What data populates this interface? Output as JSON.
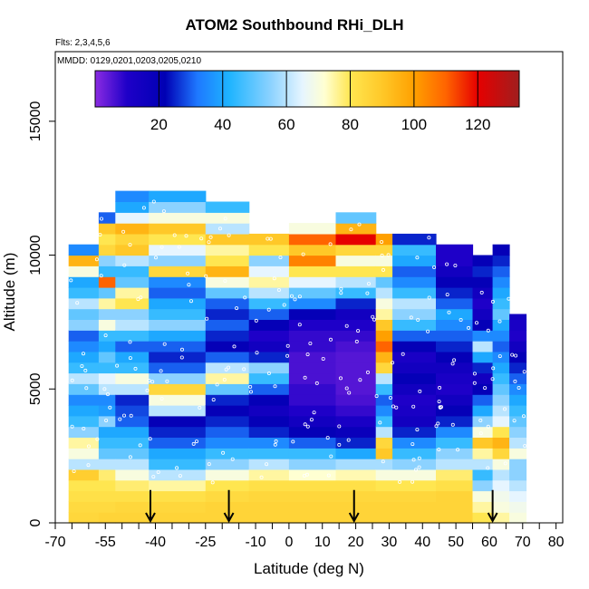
{
  "chart_data": {
    "type": "heatmap",
    "title": "ATOM2 Southbound RHi_DLH",
    "subtitle_flights": "Flts: 2,3,4,5,6",
    "subtitle_dates": "MMDD: 0129,0201,0203,0205,0210",
    "xlabel": "Latitude (deg N)",
    "ylabel": "Altitude (m)",
    "xlim": [
      -70,
      82
    ],
    "ylim": [
      0,
      17600
    ],
    "x_ticks": [
      -70,
      -55,
      -40,
      -25,
      -10,
      0,
      10,
      20,
      30,
      40,
      50,
      60,
      70,
      80
    ],
    "x_minor_ticks": [
      -65,
      -60,
      -50,
      -45,
      -35,
      -30,
      -20,
      -15,
      -5,
      5,
      15,
      25,
      35,
      45,
      55,
      65,
      75
    ],
    "y_ticks": [
      0,
      5000,
      10000,
      15000
    ],
    "colorbar": {
      "range": [
        0,
        133
      ],
      "ticks": [
        20,
        40,
        60,
        80,
        100,
        120
      ],
      "stops": [
        {
          "v": 0,
          "c": "#8B2BE2"
        },
        {
          "v": 10,
          "c": "#1E00C8"
        },
        {
          "v": 22,
          "c": "#0000B4"
        },
        {
          "v": 32,
          "c": "#1E78FF"
        },
        {
          "v": 42,
          "c": "#1EB4FF"
        },
        {
          "v": 55,
          "c": "#8CD2FF"
        },
        {
          "v": 65,
          "c": "#E6F5FF"
        },
        {
          "v": 72,
          "c": "#FFFFD2"
        },
        {
          "v": 80,
          "c": "#FFE650"
        },
        {
          "v": 90,
          "c": "#FFC828"
        },
        {
          "v": 100,
          "c": "#FFA000"
        },
        {
          "v": 110,
          "c": "#FF6400"
        },
        {
          "v": 120,
          "c": "#E60000"
        },
        {
          "v": 133,
          "c": "#A01E1E"
        }
      ]
    },
    "altitude_bin_m": 400,
    "profiles": [
      {
        "lat": -66,
        "lat_end": -57,
        "top": 10400,
        "rows": [
          85,
          84,
          82,
          80,
          88,
          60,
          70,
          75,
          55,
          45,
          40,
          35,
          50,
          60,
          45,
          40,
          35,
          30,
          55,
          50,
          60,
          45,
          40,
          70,
          95,
          35
        ]
      },
      {
        "lat": -57,
        "lat_end": -52,
        "top": 11800,
        "rows": [
          86,
          84,
          82,
          80,
          78,
          60,
          50,
          45,
          40,
          55,
          38,
          35,
          60,
          65,
          45,
          50,
          40,
          45,
          70,
          55,
          75,
          50,
          110,
          45,
          55,
          85,
          80,
          90,
          30
        ]
      },
      {
        "lat": -52,
        "lat_end": -42,
        "top": 12400,
        "rows": [
          86,
          85,
          82,
          78,
          70,
          60,
          50,
          45,
          40,
          30,
          28,
          25,
          60,
          70,
          45,
          40,
          30,
          45,
          60,
          55,
          80,
          75,
          50,
          45,
          60,
          90,
          85,
          95,
          65,
          40,
          35
        ]
      },
      {
        "lat": -42,
        "lat_end": -25,
        "top": 12400,
        "rows": [
          86,
          85,
          82,
          75,
          60,
          45,
          40,
          30,
          25,
          20,
          60,
          70,
          85,
          55,
          30,
          25,
          30,
          40,
          55,
          45,
          40,
          30,
          35,
          85,
          55,
          65,
          80,
          90,
          70,
          55,
          40
        ]
      },
      {
        "lat": -25,
        "lat_end": -12,
        "top": 12000,
        "rows": [
          86,
          86,
          84,
          80,
          70,
          55,
          45,
          35,
          30,
          25,
          20,
          25,
          50,
          75,
          60,
          30,
          20,
          25,
          30,
          25,
          30,
          50,
          70,
          95,
          80,
          75,
          90,
          60,
          70,
          45
        ]
      },
      {
        "lat": -12,
        "lat_end": 0,
        "top": 11000,
        "rows": [
          86,
          86,
          85,
          82,
          75,
          60,
          45,
          35,
          25,
          20,
          15,
          20,
          30,
          45,
          55,
          25,
          15,
          10,
          20,
          30,
          45,
          60,
          75,
          65,
          55,
          80,
          90
        ]
      },
      {
        "lat": 0,
        "lat_end": 14,
        "top": 11200,
        "rows": [
          86,
          86,
          85,
          82,
          72,
          55,
          45,
          30,
          20,
          15,
          10,
          8,
          8,
          6,
          6,
          6,
          8,
          8,
          10,
          20,
          35,
          50,
          65,
          80,
          105,
          90,
          110,
          70
        ]
      },
      {
        "lat": 14,
        "lat_end": 26,
        "top": 11800,
        "rows": [
          86,
          86,
          85,
          82,
          74,
          58,
          40,
          25,
          18,
          12,
          8,
          6,
          5,
          5,
          5,
          5,
          6,
          8,
          10,
          15,
          25,
          45,
          60,
          80,
          70,
          85,
          120,
          95,
          50
        ]
      },
      {
        "lat": 26,
        "lat_end": 31,
        "top": 11000,
        "rows": [
          86,
          86,
          85,
          80,
          70,
          58,
          90,
          85,
          60,
          45,
          35,
          30,
          45,
          60,
          85,
          95,
          110,
          100,
          90,
          75,
          70,
          60,
          50,
          80,
          70,
          85,
          100
        ]
      },
      {
        "lat": 31,
        "lat_end": 44,
        "top": 11000,
        "rows": [
          86,
          86,
          85,
          80,
          70,
          55,
          45,
          35,
          25,
          15,
          12,
          10,
          15,
          20,
          15,
          12,
          20,
          30,
          45,
          55,
          60,
          45,
          35,
          30,
          40,
          45,
          25
        ]
      },
      {
        "lat": 44,
        "lat_end": 55,
        "top": 10400,
        "rows": [
          86,
          86,
          86,
          82,
          78,
          60,
          55,
          45,
          35,
          25,
          20,
          15,
          10,
          12,
          15,
          20,
          25,
          30,
          35,
          40,
          30,
          25,
          20,
          15,
          10,
          10
        ]
      },
      {
        "lat": 55,
        "lat_end": 61,
        "top": 10000,
        "rows": [
          80,
          75,
          70,
          55,
          45,
          60,
          75,
          90,
          70,
          55,
          40,
          30,
          20,
          15,
          25,
          40,
          60,
          35,
          20,
          15,
          10,
          15,
          20,
          25,
          20
        ]
      },
      {
        "lat": 61,
        "lat_end": 66,
        "top": 10400,
        "rows": [
          75,
          70,
          68,
          65,
          60,
          70,
          85,
          95,
          80,
          65,
          60,
          55,
          50,
          45,
          40,
          35,
          30,
          35,
          40,
          50,
          45,
          40,
          35,
          30,
          25,
          20
        ]
      },
      {
        "lat": 66,
        "lat_end": 71,
        "top": 7800,
        "rows": [
          70,
          68,
          65,
          60,
          55,
          55,
          70,
          60,
          55,
          50,
          45,
          40,
          35,
          30,
          25,
          20,
          15,
          10,
          12,
          15
        ]
      }
    ],
    "arrows_lat": [
      -41.5,
      -18,
      19.5,
      61
    ],
    "arrow_marker": "down-arrow"
  }
}
